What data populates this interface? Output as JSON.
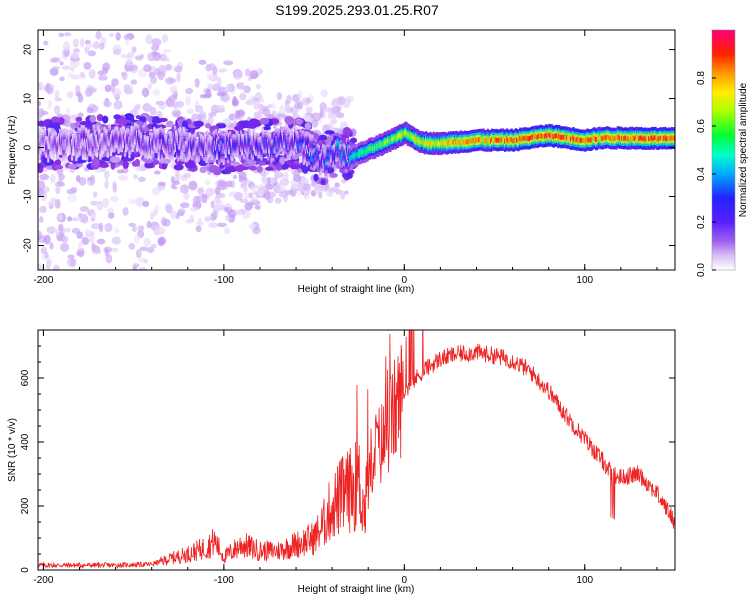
{
  "figure_title": "S199.2025.293.01.25.R07",
  "chart_data": [
    {
      "type": "heatmap",
      "title": "S199.2025.293.01.25.R07",
      "xlabel": "Height of straight line (km)",
      "ylabel": "Frequency (Hz)",
      "xlim": [
        -203,
        150
      ],
      "ylim": [
        -25,
        24
      ],
      "xticks": [
        -200,
        -100,
        0,
        100
      ],
      "yticks": [
        -20,
        -10,
        0,
        10,
        20
      ],
      "colorbar": {
        "label": "Normalized spectral amplitude",
        "range": [
          0,
          1
        ],
        "ticks": [
          0.0,
          0.2,
          0.4,
          0.6,
          0.8
        ],
        "tick_labels": [
          "0.0",
          "0.2",
          "0.4",
          "0.6",
          "0.8"
        ],
        "colormap": [
          "#ffffff",
          "#c9a6f5",
          "#8a2be2",
          "#2222ff",
          "#00ccff",
          "#00ff66",
          "#ccff00",
          "#ffcc00",
          "#ff3300",
          "#ff0066"
        ]
      },
      "ridge": {
        "description_points_x_km": [
          -203,
          -150,
          -100,
          -60,
          -45,
          -38,
          -30,
          -20,
          -10,
          0,
          10,
          20,
          40,
          60,
          80,
          100,
          110,
          150
        ],
        "description_points_freq_hz": [
          0.5,
          1.5,
          0.0,
          1.0,
          -2.5,
          -0.5,
          -2.0,
          -0.5,
          1.0,
          3.0,
          1.0,
          0.8,
          1.5,
          1.5,
          2.5,
          1.5,
          2.0,
          1.8
        ],
        "peak_amplitude_points_x_km": [
          -203,
          -100,
          -50,
          -35,
          -10,
          0,
          20,
          50,
          80,
          110,
          150
        ],
        "peak_amplitude_values": [
          0.2,
          0.3,
          0.35,
          0.45,
          0.65,
          0.7,
          0.75,
          0.85,
          0.9,
          0.85,
          0.95
        ]
      }
    },
    {
      "type": "line",
      "xlabel": "Height of straight line (km)",
      "ylabel": "SNR (10 * v/v)",
      "xlim": [
        -203,
        150
      ],
      "ylim": [
        0,
        750
      ],
      "xticks": [
        -200,
        -100,
        0,
        100
      ],
      "yticks": [
        0,
        200,
        400,
        600
      ],
      "series": [
        {
          "name": "SNR",
          "color": "#ee2222",
          "x": [
            -203,
            -180,
            -160,
            -140,
            -130,
            -120,
            -110,
            -105,
            -100,
            -90,
            -80,
            -70,
            -60,
            -50,
            -45,
            -40,
            -35,
            -30,
            -25,
            -22,
            -18,
            -12,
            -5,
            0,
            5,
            10,
            20,
            30,
            40,
            50,
            60,
            70,
            80,
            90,
            100,
            110,
            115,
            120,
            130,
            140,
            150
          ],
          "y": [
            15,
            15,
            15,
            18,
            35,
            50,
            70,
            90,
            40,
            80,
            60,
            60,
            80,
            100,
            140,
            200,
            230,
            250,
            270,
            180,
            360,
            400,
            500,
            560,
            590,
            620,
            660,
            675,
            680,
            670,
            655,
            620,
            560,
            480,
            410,
            340,
            300,
            290,
            300,
            240,
            150
          ]
        }
      ]
    }
  ]
}
